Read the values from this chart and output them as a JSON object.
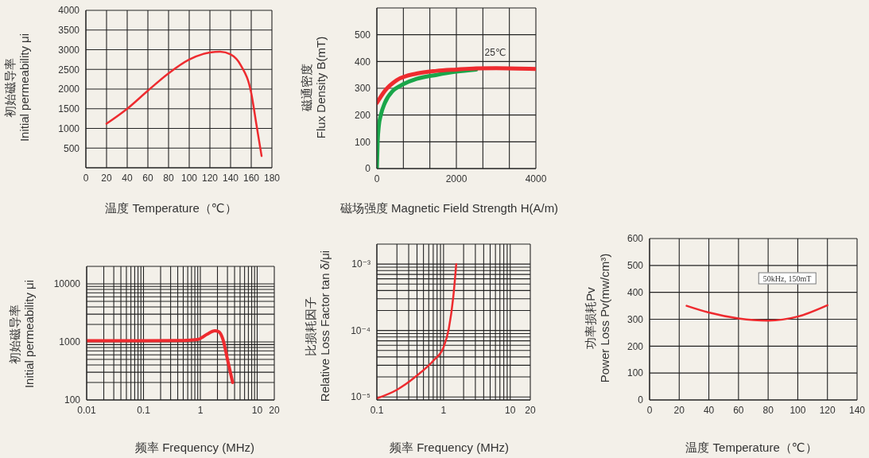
{
  "chart_data": [
    {
      "type": "line",
      "xlabel": "温度 Temperature（℃）",
      "ylabel": "初始磁导率\nInitial permeability μi",
      "xlim": [
        0,
        180
      ],
      "xticks": [
        0,
        20,
        40,
        60,
        80,
        100,
        120,
        140,
        160,
        180
      ],
      "ylim": [
        0,
        4000
      ],
      "yticks": [
        {
          "value": 0,
          "label": null
        },
        500,
        1000,
        1500,
        2000,
        2500,
        3000,
        3500,
        4000
      ],
      "grid": true,
      "line_style": "solid",
      "marker": "none",
      "series": [
        {
          "color": "#ee2b2f",
          "x": [
            20,
            40,
            60,
            80,
            100,
            120,
            130,
            140,
            150,
            160,
            165,
            170
          ],
          "values": [
            1120,
            1500,
            1960,
            2400,
            2750,
            2930,
            2950,
            2880,
            2600,
            1900,
            1100,
            300
          ]
        }
      ]
    },
    {
      "type": "line",
      "xlabel": "磁场强度 Magnetic Field Strength H(A/m)",
      "ylabel": "磁通密度\nFlux Density  B(mT)",
      "xlim": [
        0,
        4000
      ],
      "xticks": [
        0,
        {
          "value": 667,
          "label": null
        },
        {
          "value": 1333,
          "label": null
        },
        2000,
        {
          "value": 2667,
          "label": null
        },
        {
          "value": 3333,
          "label": null
        },
        4000
      ],
      "ylim": [
        0,
        600
      ],
      "yticks": [
        0,
        100,
        200,
        300,
        400,
        500,
        {
          "value": 600,
          "label": null
        }
      ],
      "grid": true,
      "line_style": "solid",
      "marker": "none",
      "annotations": [
        "25℃"
      ],
      "series": [
        {
          "color": "#1aa64a",
          "x": [
            0,
            20,
            50,
            100,
            200,
            400,
            600,
            1000,
            1500,
            2000,
            2500
          ],
          "values": [
            0,
            100,
            160,
            200,
            245,
            290,
            310,
            335,
            350,
            362,
            370
          ]
        },
        {
          "color": "#ee2b2f",
          "x": [
            0,
            200,
            500,
            1000,
            1500,
            2000,
            2500,
            3000,
            4000
          ],
          "values": [
            245,
            290,
            330,
            355,
            365,
            370,
            374,
            375,
            372
          ]
        }
      ]
    },
    {
      "type": "line",
      "log": "xy",
      "xlabel": "频率 Frequency (MHz)",
      "ylabel": "初始磁导率\nInitial permeability μi",
      "xlim": [
        0.01,
        20
      ],
      "xticks": [
        0.01,
        {
          "value": 0.02,
          "label": null
        },
        {
          "value": 0.03,
          "label": null
        },
        {
          "value": 0.04,
          "label": null
        },
        {
          "value": 0.05,
          "label": null
        },
        {
          "value": 0.06,
          "label": null
        },
        {
          "value": 0.07,
          "label": null
        },
        {
          "value": 0.08,
          "label": null
        },
        {
          "value": 0.09,
          "label": null
        },
        0.1,
        {
          "value": 0.2,
          "label": null
        },
        {
          "value": 0.3,
          "label": null
        },
        {
          "value": 0.4,
          "label": null
        },
        {
          "value": 0.5,
          "label": null
        },
        {
          "value": 0.6,
          "label": null
        },
        {
          "value": 0.7,
          "label": null
        },
        {
          "value": 0.8,
          "label": null
        },
        {
          "value": 0.9,
          "label": null
        },
        1,
        {
          "value": 2,
          "label": null
        },
        {
          "value": 3,
          "label": null
        },
        {
          "value": 4,
          "label": null
        },
        {
          "value": 5,
          "label": null
        },
        {
          "value": 6,
          "label": null
        },
        {
          "value": 7,
          "label": null
        },
        {
          "value": 8,
          "label": null
        },
        {
          "value": 9,
          "label": null
        },
        10,
        20
      ],
      "ylim": [
        100,
        20000
      ],
      "yticks": [
        100,
        {
          "value": 200,
          "label": null
        },
        {
          "value": 300,
          "label": null
        },
        {
          "value": 400,
          "label": null
        },
        {
          "value": 500,
          "label": null
        },
        {
          "value": 600,
          "label": null
        },
        {
          "value": 700,
          "label": null
        },
        {
          "value": 800,
          "label": null
        },
        {
          "value": 900,
          "label": null
        },
        1000,
        {
          "value": 2000,
          "label": null
        },
        {
          "value": 3000,
          "label": null
        },
        {
          "value": 4000,
          "label": null
        },
        {
          "value": 5000,
          "label": null
        },
        {
          "value": 6000,
          "label": null
        },
        {
          "value": 7000,
          "label": null
        },
        {
          "value": 8000,
          "label": null
        },
        {
          "value": 9000,
          "label": null
        },
        10000,
        {
          "value": 20000,
          "label": null
        }
      ],
      "grid": true,
      "line_style": "solid",
      "marker": "none",
      "series": [
        {
          "color": "#ee2b2f",
          "x": [
            0.01,
            0.1,
            0.5,
            0.9,
            1.3,
            1.8,
            2.1,
            2.5,
            3,
            3.7
          ],
          "values": [
            1050,
            1050,
            1060,
            1100,
            1350,
            1550,
            1500,
            1100,
            500,
            200
          ]
        }
      ]
    },
    {
      "type": "line",
      "log": "xy",
      "xlabel": "频率 Frequency (MHz)",
      "ylabel": "比损耗因子\nRelative Loss Factor tan δ/μi",
      "xlim": [
        0.1,
        20
      ],
      "xticks": [
        0.1,
        {
          "value": 0.2,
          "label": null
        },
        {
          "value": 0.3,
          "label": null
        },
        {
          "value": 0.4,
          "label": null
        },
        {
          "value": 0.5,
          "label": null
        },
        {
          "value": 0.6,
          "label": null
        },
        {
          "value": 0.7,
          "label": null
        },
        {
          "value": 0.8,
          "label": null
        },
        {
          "value": 0.9,
          "label": null
        },
        1,
        {
          "value": 2,
          "label": null
        },
        {
          "value": 3,
          "label": null
        },
        {
          "value": 4,
          "label": null
        },
        {
          "value": 5,
          "label": null
        },
        {
          "value": 6,
          "label": null
        },
        {
          "value": 7,
          "label": null
        },
        {
          "value": 8,
          "label": null
        },
        {
          "value": 9,
          "label": null
        },
        10,
        20
      ],
      "ylim": [
        9e-06,
        0.002
      ],
      "yticks": [
        {
          "value": 1e-05,
          "label": "10⁻⁵"
        },
        {
          "value": 2e-05,
          "label": null
        },
        {
          "value": 3e-05,
          "label": null
        },
        {
          "value": 4e-05,
          "label": null
        },
        {
          "value": 5e-05,
          "label": null
        },
        {
          "value": 6e-05,
          "label": null
        },
        {
          "value": 7e-05,
          "label": null
        },
        {
          "value": 8e-05,
          "label": null
        },
        {
          "value": 9e-05,
          "label": null
        },
        {
          "value": 0.0001,
          "label": "10⁻⁴"
        },
        {
          "value": 0.0002,
          "label": null
        },
        {
          "value": 0.0003,
          "label": null
        },
        {
          "value": 0.0004,
          "label": null
        },
        {
          "value": 0.0005,
          "label": null
        },
        {
          "value": 0.0006,
          "label": null
        },
        {
          "value": 0.0007,
          "label": null
        },
        {
          "value": 0.0008,
          "label": null
        },
        {
          "value": 0.0009,
          "label": null
        },
        {
          "value": 0.001,
          "label": "10⁻³"
        },
        {
          "value": 0.002,
          "label": null
        }
      ],
      "grid": true,
      "line_style": "solid",
      "marker": "none",
      "series": [
        {
          "color": "#ee2b2f",
          "x": [
            0.1,
            0.2,
            0.4,
            0.7,
            1,
            1.2,
            1.4,
            1.55
          ],
          "values": [
            9.5e-06,
            1.28e-05,
            2.1e-05,
            3.5e-05,
            5.6e-05,
            0.000107,
            0.00032,
            0.001
          ]
        }
      ]
    },
    {
      "type": "line",
      "xlabel": "温度 Temperature（℃）",
      "ylabel": "功率损耗Pv\nPower Loss Pv(mw/cm³)",
      "xlim": [
        0,
        140
      ],
      "xticks": [
        0,
        20,
        40,
        60,
        80,
        100,
        120,
        140
      ],
      "ylim": [
        0,
        600
      ],
      "yticks": [
        0,
        100,
        200,
        300,
        400,
        500,
        600
      ],
      "grid": true,
      "line_style": "solid",
      "marker": "none",
      "annotations": [
        "50kHz, 150mT"
      ],
      "series": [
        {
          "color": "#ee2b2f",
          "x": [
            25,
            40,
            60,
            80,
            100,
            120
          ],
          "values": [
            350,
            325,
            303,
            295,
            310,
            352
          ]
        }
      ]
    }
  ]
}
